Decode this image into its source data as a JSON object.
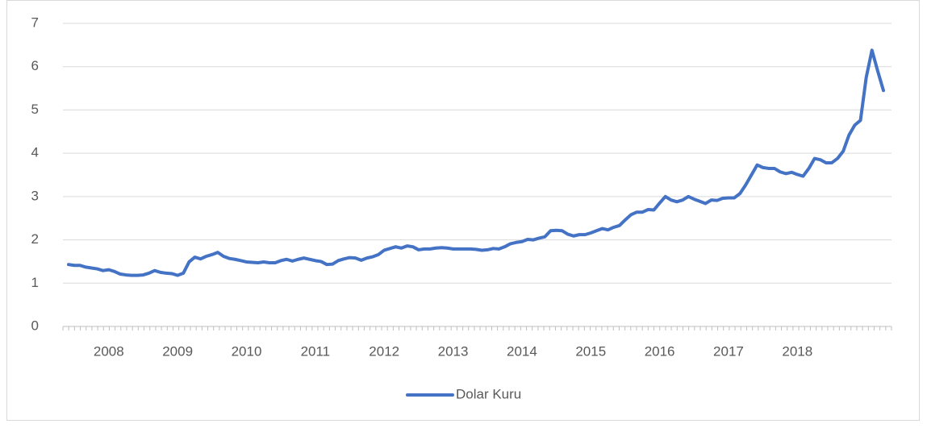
{
  "chart_data": {
    "type": "line",
    "categories": [
      null,
      null,
      null,
      null,
      null,
      null,
      null,
      "2008",
      null,
      null,
      null,
      null,
      null,
      null,
      null,
      null,
      null,
      null,
      null,
      "2009",
      null,
      null,
      null,
      null,
      null,
      null,
      null,
      null,
      null,
      null,
      null,
      "2010",
      null,
      null,
      null,
      null,
      null,
      null,
      null,
      null,
      null,
      null,
      null,
      "2011",
      null,
      null,
      null,
      null,
      null,
      null,
      null,
      null,
      null,
      null,
      null,
      "2012",
      null,
      null,
      null,
      null,
      null,
      null,
      null,
      null,
      null,
      null,
      null,
      "2013",
      null,
      null,
      null,
      null,
      null,
      null,
      null,
      null,
      null,
      null,
      null,
      "2014",
      null,
      null,
      null,
      null,
      null,
      null,
      null,
      null,
      null,
      null,
      null,
      "2015",
      null,
      null,
      null,
      null,
      null,
      null,
      null,
      null,
      null,
      null,
      null,
      "2016",
      null,
      null,
      null,
      null,
      null,
      null,
      null,
      null,
      null,
      null,
      null,
      "2017",
      null,
      null,
      null,
      null,
      null,
      null,
      null,
      null,
      null,
      null,
      null,
      "2018",
      null,
      null,
      null,
      null,
      null,
      null,
      null,
      null,
      null,
      null,
      null,
      null,
      null,
      null,
      null
    ],
    "series": [
      {
        "name": "Dolar Kuru",
        "color": "#4472c4",
        "values": [
          1.43,
          1.41,
          1.41,
          1.37,
          1.35,
          1.33,
          1.29,
          1.31,
          1.27,
          1.21,
          1.19,
          1.18,
          1.18,
          1.19,
          1.23,
          1.29,
          1.25,
          1.23,
          1.22,
          1.18,
          1.23,
          1.49,
          1.6,
          1.56,
          1.62,
          1.66,
          1.71,
          1.62,
          1.57,
          1.55,
          1.52,
          1.49,
          1.48,
          1.47,
          1.49,
          1.47,
          1.47,
          1.52,
          1.55,
          1.51,
          1.55,
          1.58,
          1.55,
          1.52,
          1.5,
          1.43,
          1.44,
          1.52,
          1.56,
          1.59,
          1.58,
          1.53,
          1.58,
          1.61,
          1.66,
          1.76,
          1.8,
          1.84,
          1.81,
          1.86,
          1.84,
          1.77,
          1.79,
          1.79,
          1.81,
          1.82,
          1.81,
          1.79,
          1.79,
          1.79,
          1.79,
          1.78,
          1.76,
          1.77,
          1.8,
          1.79,
          1.84,
          1.91,
          1.94,
          1.96,
          2.01,
          2.0,
          2.04,
          2.07,
          2.21,
          2.22,
          2.21,
          2.13,
          2.09,
          2.12,
          2.12,
          2.16,
          2.21,
          2.26,
          2.23,
          2.29,
          2.33,
          2.46,
          2.58,
          2.64,
          2.64,
          2.7,
          2.69,
          2.85,
          3.0,
          2.92,
          2.88,
          2.92,
          3.0,
          2.94,
          2.89,
          2.84,
          2.92,
          2.91,
          2.96,
          2.97,
          2.97,
          3.07,
          3.27,
          3.5,
          3.73,
          3.67,
          3.65,
          3.65,
          3.57,
          3.53,
          3.56,
          3.51,
          3.47,
          3.65,
          3.88,
          3.85,
          3.78,
          3.78,
          3.88,
          4.05,
          4.42,
          4.65,
          4.76,
          5.75,
          6.38,
          5.9,
          5.45
        ]
      }
    ],
    "ylim": [
      0,
      7
    ],
    "yticks": [
      0,
      1,
      2,
      3,
      4,
      5,
      6,
      7
    ],
    "grid": true,
    "legend": "bottom"
  }
}
